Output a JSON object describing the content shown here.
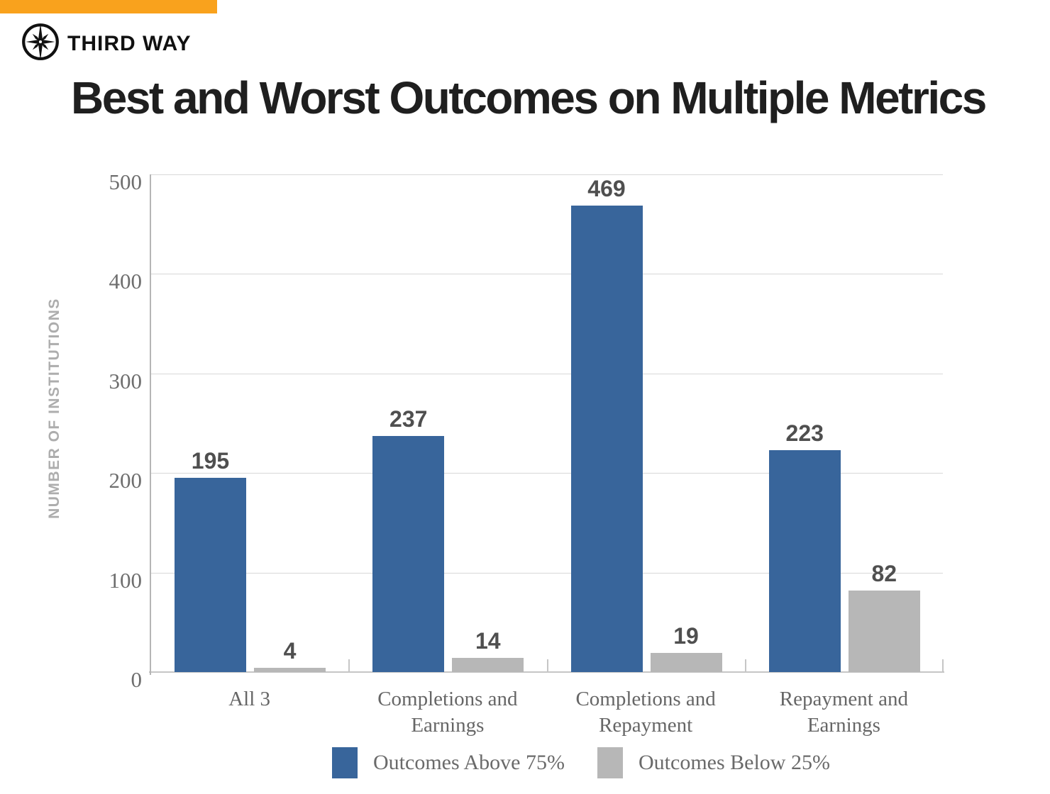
{
  "brand": {
    "name": "THIRD WAY",
    "accent_color": "#F9A21D",
    "logo_icon": "compass-star-icon"
  },
  "title": "Best and Worst Outcomes on Multiple Metrics",
  "chart_data": {
    "type": "bar",
    "title": "Best and Worst Outcomes on Multiple Metrics",
    "categories": [
      "All 3",
      "Completions and Earnings",
      "Completions and Repayment",
      "Repayment and Earnings"
    ],
    "series": [
      {
        "name": "Outcomes Above 75%",
        "color": "#38659B",
        "values": [
          195,
          237,
          469,
          223
        ]
      },
      {
        "name": "Outcomes Below 25%",
        "color": "#B7B7B7",
        "values": [
          4,
          14,
          19,
          82
        ]
      }
    ],
    "ylabel": "NUMBER OF INSTITUTIONS",
    "ylim": [
      0,
      500
    ],
    "yticks": [
      0,
      100,
      200,
      300,
      400,
      500
    ],
    "grid": true,
    "legend_position": "bottom"
  }
}
